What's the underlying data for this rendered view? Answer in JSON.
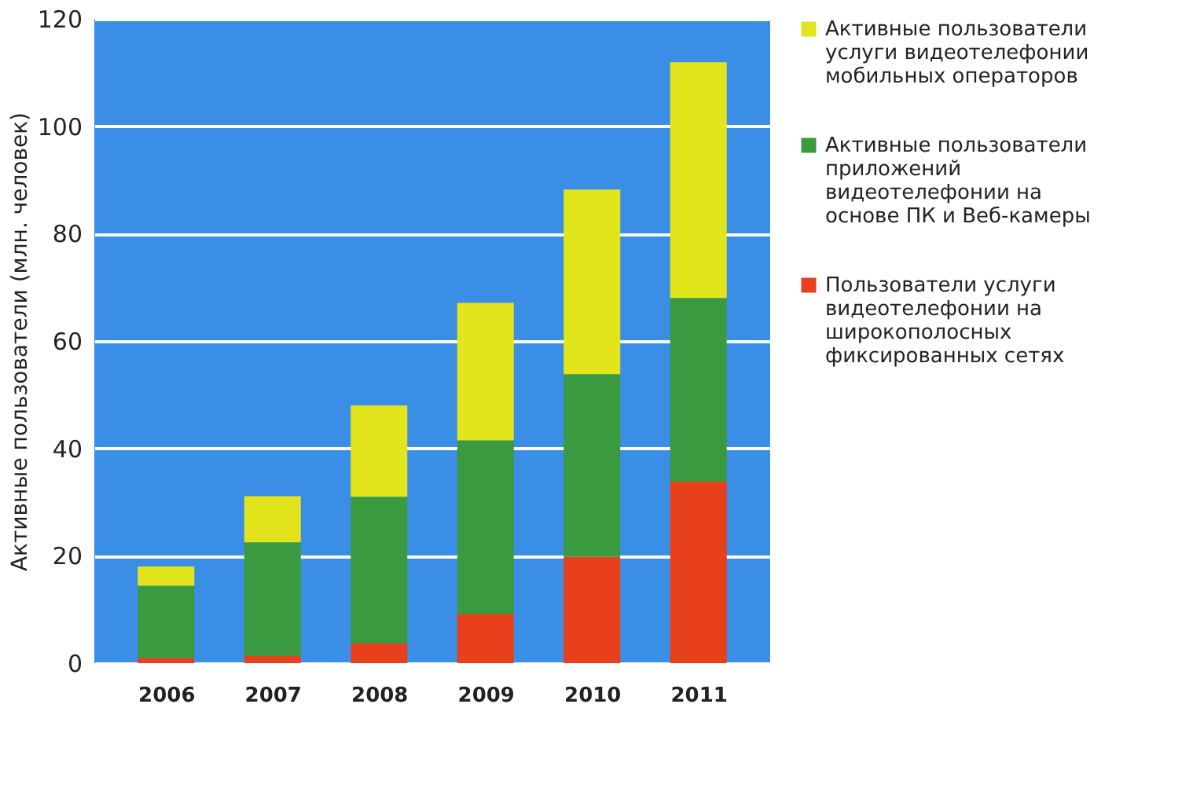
{
  "chart_data": {
    "type": "bar",
    "stacked": true,
    "ylabel": "Активные пользователи (млн. человек)",
    "categories": [
      "2006",
      "2007",
      "2008",
      "2009",
      "2010",
      "2011"
    ],
    "series": [
      {
        "name": "Пользователи услуги видеотелефонии на широкополосных фиксированных сетях",
        "color": "#e8401a",
        "values": [
          1,
          1.4,
          3.7,
          9.2,
          19.8,
          33.8
        ]
      },
      {
        "name": "Активные пользователи приложений видеотелефонии на основе ПК и Веб-камеры",
        "color": "#3a9a40",
        "values": [
          13.4,
          21.1,
          27.3,
          32.3,
          34,
          34.2
        ]
      },
      {
        "name": "Активные пользователи услуги видеотелефонии мобильных операторов",
        "color": "#e2e41c",
        "values": [
          3.6,
          8.6,
          17,
          25.6,
          34.4,
          43.9
        ]
      }
    ],
    "ylim": [
      0,
      120
    ],
    "yticks": [
      0,
      20,
      40,
      60,
      80,
      100,
      120
    ],
    "grid": "y",
    "legend": "right"
  }
}
